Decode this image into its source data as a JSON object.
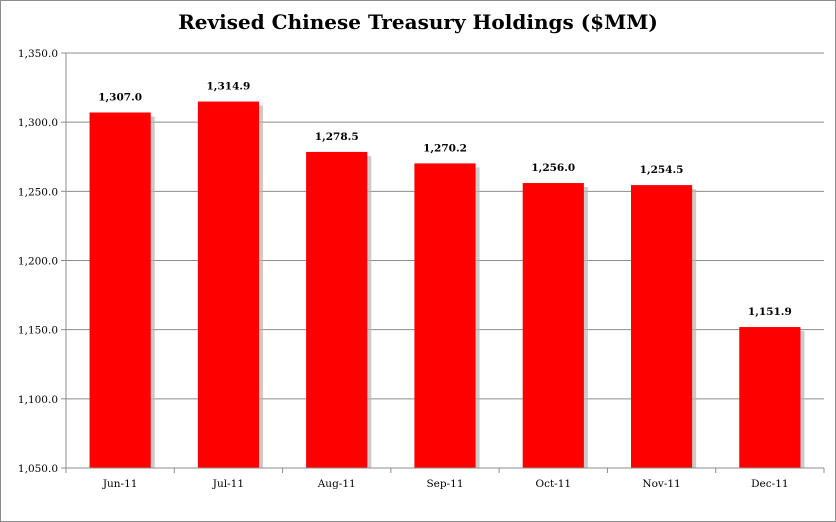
{
  "chart_data": {
    "type": "bar",
    "title": "Revised Chinese Treasury Holdings ($MM)",
    "categories": [
      "Jun-11",
      "Jul-11",
      "Aug-11",
      "Sep-11",
      "Oct-11",
      "Nov-11",
      "Dec-11"
    ],
    "values": [
      1307.0,
      1314.9,
      1278.5,
      1270.2,
      1256.0,
      1254.5,
      1151.9
    ],
    "value_labels": [
      "1,307.0",
      "1,314.9",
      "1,278.5",
      "1,270.2",
      "1,256.0",
      "1,254.5",
      "1,151.9"
    ],
    "xlabel": "",
    "ylabel": "",
    "ylim": [
      1050,
      1350
    ],
    "yticks": [
      1050,
      1100,
      1150,
      1200,
      1250,
      1300,
      1350
    ],
    "ytick_labels": [
      "1,050.0",
      "1,100.0",
      "1,150.0",
      "1,200.0",
      "1,250.0",
      "1,300.0",
      "1,350.0"
    ],
    "grid": true,
    "legend": "none",
    "colors": {
      "bar": "#ff0000",
      "shadow": "#b5b5b5",
      "grid": "#8c8c8c",
      "axis": "#8c8c8c"
    }
  }
}
